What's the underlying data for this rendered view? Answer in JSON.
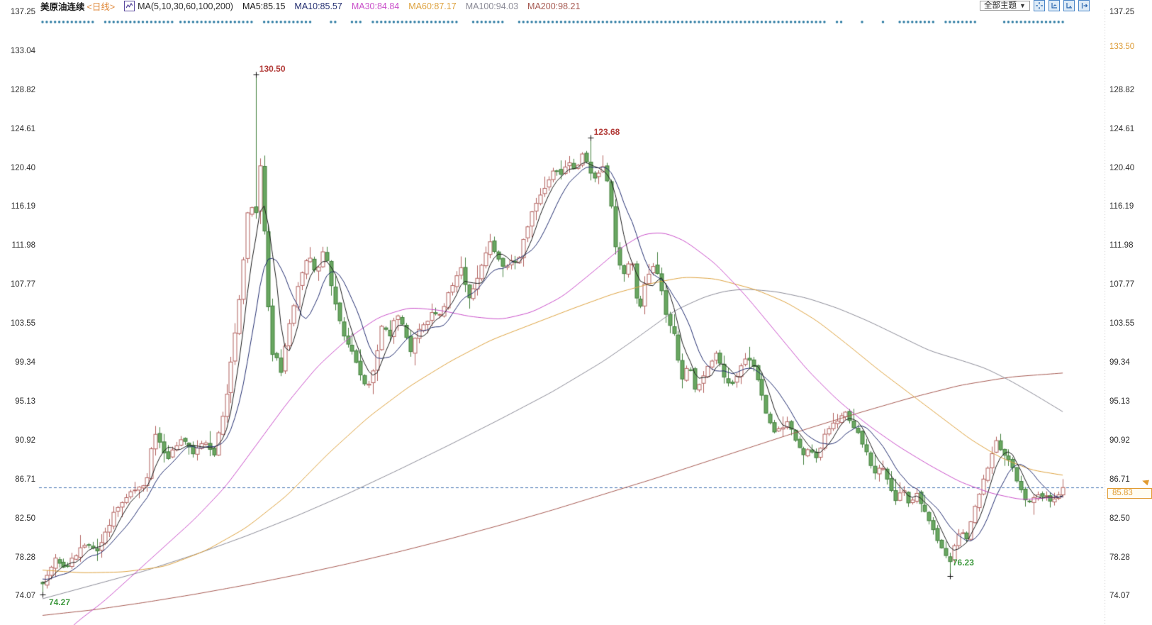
{
  "header": {
    "symbol": "美原油连续",
    "period": "<日线>",
    "indicator": "MA(5,10,30,60,100,200)",
    "ma_values": [
      {
        "name": "MA5",
        "label": "MA5:85.15",
        "value": 85.15,
        "color": "#1a1a1a"
      },
      {
        "name": "MA10",
        "label": "MA10:85.57",
        "value": 85.57,
        "color": "#232e70"
      },
      {
        "name": "MA30",
        "label": "MA30:84.84",
        "value": 84.84,
        "color": "#c94fc9"
      },
      {
        "name": "MA60",
        "label": "MA60:87.17",
        "value": 87.17,
        "color": "#dda23f"
      },
      {
        "name": "MA100",
        "label": "MA100:94.03",
        "value": 94.03,
        "color": "#8a8a96"
      },
      {
        "name": "MA200",
        "label": "MA200:98.21",
        "value": 98.21,
        "color": "#a65a52"
      }
    ]
  },
  "toolbar": {
    "themes_label": "全部主题",
    "themes_caret": "▼",
    "icons": [
      "crosshair-icon",
      "axis-chart-icon",
      "axis-play-icon",
      "panel-expand-icon"
    ]
  },
  "axis": {
    "left_ticks": [
      {
        "label": "137.25",
        "price": 137.25
      },
      {
        "label": "133.04",
        "price": 133.04
      },
      {
        "label": "128.82",
        "price": 128.82
      },
      {
        "label": "124.61",
        "price": 124.61
      },
      {
        "label": "120.40",
        "price": 120.4
      },
      {
        "label": "116.19",
        "price": 116.19
      },
      {
        "label": "111.98",
        "price": 111.98
      },
      {
        "label": "107.77",
        "price": 107.77
      },
      {
        "label": "103.55",
        "price": 103.55
      },
      {
        "label": "99.34",
        "price": 99.34
      },
      {
        "label": "95.13",
        "price": 95.13
      },
      {
        "label": "90.92",
        "price": 90.92
      },
      {
        "label": "86.71",
        "price": 86.71
      },
      {
        "label": "82.50",
        "price": 82.5
      },
      {
        "label": "78.28",
        "price": 78.28
      },
      {
        "label": "74.07",
        "price": 74.07
      }
    ],
    "right_ticks": [
      {
        "label": "137.25",
        "price": 137.25
      },
      {
        "label": "133.50",
        "price": 133.5,
        "highlight": true
      },
      {
        "label": "128.82",
        "price": 128.82
      },
      {
        "label": "124.61",
        "price": 124.61
      },
      {
        "label": "120.40",
        "price": 120.4
      },
      {
        "label": "116.19",
        "price": 116.19
      },
      {
        "label": "111.98",
        "price": 111.98
      },
      {
        "label": "107.77",
        "price": 107.77
      },
      {
        "label": "103.55",
        "price": 103.55
      },
      {
        "label": "99.34",
        "price": 99.34
      },
      {
        "label": "95.13",
        "price": 95.13
      },
      {
        "label": "90.92",
        "price": 90.92
      },
      {
        "label": "86.71",
        "price": 86.71
      },
      {
        "label": "82.50",
        "price": 82.5
      },
      {
        "label": "78.28",
        "price": 78.28
      },
      {
        "label": "74.07",
        "price": 74.07
      }
    ]
  },
  "price_line": {
    "label": "85.83",
    "value": 85.83,
    "color": "#e09a30",
    "dash_color": "#4a77b4"
  },
  "chart_data": {
    "type": "candlestick",
    "title": "美原油连续 <日线> — US Crude Oil Continuous, Daily",
    "ylim": [
      70.9,
      137.25
    ],
    "y_ticks": [
      74.07,
      78.28,
      82.5,
      86.71,
      90.92,
      95.13,
      99.34,
      103.55,
      107.77,
      111.98,
      116.19,
      120.4,
      124.61,
      128.82,
      133.04,
      137.25
    ],
    "grid": false,
    "candle_count": 245,
    "last_price": 85.83,
    "seed": 7,
    "noise": 0.45,
    "colors": {
      "up_border": "#b2615e",
      "up_fill": "#ffffff",
      "down_border": "#44803f",
      "down_fill": "#69a761",
      "event_dot": "#2878a0",
      "separator": "#c9c9c9"
    },
    "key_points": [
      {
        "label": "130.50",
        "price": 130.5,
        "t": 0.209,
        "kind": "high",
        "placement": "above"
      },
      {
        "label": "123.68",
        "price": 123.68,
        "t": 0.537,
        "kind": "high",
        "placement": "above"
      },
      {
        "label": "74.27",
        "price": 74.27,
        "t": 0.0,
        "kind": "low",
        "placement": "below"
      },
      {
        "label": "76.23",
        "price": 76.23,
        "t": 0.889,
        "kind": "low",
        "placement": "above-far"
      }
    ],
    "close_path": [
      [
        0.0,
        75.3
      ],
      [
        0.012,
        78.3
      ],
      [
        0.022,
        77.0
      ],
      [
        0.033,
        78.6
      ],
      [
        0.043,
        80.0
      ],
      [
        0.054,
        79.0
      ],
      [
        0.071,
        83.3
      ],
      [
        0.088,
        85.4
      ],
      [
        0.101,
        86.0
      ],
      [
        0.109,
        92.0
      ],
      [
        0.116,
        90.5
      ],
      [
        0.122,
        89.0
      ],
      [
        0.137,
        91.3
      ],
      [
        0.147,
        89.3
      ],
      [
        0.158,
        91.0
      ],
      [
        0.168,
        89.5
      ],
      [
        0.179,
        95.0
      ],
      [
        0.189,
        103.0
      ],
      [
        0.196,
        109.5
      ],
      [
        0.203,
        118.0
      ],
      [
        0.208,
        113.0
      ],
      [
        0.212,
        122.5
      ],
      [
        0.216,
        115.5
      ],
      [
        0.22,
        108.5
      ],
      [
        0.224,
        99.5
      ],
      [
        0.228,
        101.5
      ],
      [
        0.232,
        97.0
      ],
      [
        0.24,
        102.5
      ],
      [
        0.249,
        107.0
      ],
      [
        0.26,
        111.0
      ],
      [
        0.269,
        109.0
      ],
      [
        0.276,
        112.0
      ],
      [
        0.283,
        107.5
      ],
      [
        0.29,
        104.0
      ],
      [
        0.297,
        101.5
      ],
      [
        0.304,
        100.5
      ],
      [
        0.311,
        98.0
      ],
      [
        0.318,
        96.5
      ],
      [
        0.325,
        99.0
      ],
      [
        0.332,
        103.5
      ],
      [
        0.34,
        102.0
      ],
      [
        0.347,
        105.0
      ],
      [
        0.354,
        103.0
      ],
      [
        0.361,
        100.3
      ],
      [
        0.368,
        103.0
      ],
      [
        0.375,
        103.3
      ],
      [
        0.382,
        104.8
      ],
      [
        0.389,
        104.3
      ],
      [
        0.396,
        106.3
      ],
      [
        0.403,
        108.0
      ],
      [
        0.41,
        109.8
      ],
      [
        0.417,
        106.3
      ],
      [
        0.424,
        107.5
      ],
      [
        0.431,
        110.0
      ],
      [
        0.438,
        112.3
      ],
      [
        0.445,
        110.8
      ],
      [
        0.452,
        109.3
      ],
      [
        0.459,
        110.5
      ],
      [
        0.466,
        110.0
      ],
      [
        0.473,
        113.3
      ],
      [
        0.48,
        115.8
      ],
      [
        0.487,
        117.3
      ],
      [
        0.494,
        118.8
      ],
      [
        0.501,
        120.3
      ],
      [
        0.508,
        119.8
      ],
      [
        0.515,
        121.3
      ],
      [
        0.522,
        120.3
      ],
      [
        0.529,
        121.8
      ],
      [
        0.535,
        120.3
      ],
      [
        0.542,
        119.3
      ],
      [
        0.549,
        120.6
      ],
      [
        0.556,
        117.8
      ],
      [
        0.563,
        110.3
      ],
      [
        0.57,
        108.8
      ],
      [
        0.577,
        110.8
      ],
      [
        0.584,
        104.3
      ],
      [
        0.591,
        108.3
      ],
      [
        0.598,
        109.8
      ],
      [
        0.605,
        108.3
      ],
      [
        0.612,
        103.8
      ],
      [
        0.619,
        102.3
      ],
      [
        0.626,
        97.3
      ],
      [
        0.633,
        99.3
      ],
      [
        0.64,
        96.3
      ],
      [
        0.647,
        97.8
      ],
      [
        0.654,
        99.3
      ],
      [
        0.661,
        100.3
      ],
      [
        0.668,
        97.8
      ],
      [
        0.675,
        96.8
      ],
      [
        0.682,
        98.3
      ],
      [
        0.689,
        99.8
      ],
      [
        0.696,
        99.0
      ],
      [
        0.703,
        96.8
      ],
      [
        0.71,
        93.3
      ],
      [
        0.717,
        91.8
      ],
      [
        0.724,
        92.3
      ],
      [
        0.731,
        93.0
      ],
      [
        0.738,
        90.8
      ],
      [
        0.745,
        89.3
      ],
      [
        0.752,
        90.3
      ],
      [
        0.759,
        88.8
      ],
      [
        0.766,
        91.3
      ],
      [
        0.773,
        92.8
      ],
      [
        0.78,
        93.3
      ],
      [
        0.787,
        93.8
      ],
      [
        0.794,
        92.3
      ],
      [
        0.801,
        91.3
      ],
      [
        0.808,
        89.3
      ],
      [
        0.815,
        87.3
      ],
      [
        0.822,
        88.3
      ],
      [
        0.829,
        86.3
      ],
      [
        0.836,
        84.3
      ],
      [
        0.843,
        85.8
      ],
      [
        0.85,
        83.8
      ],
      [
        0.857,
        85.3
      ],
      [
        0.864,
        83.3
      ],
      [
        0.871,
        81.8
      ],
      [
        0.878,
        79.8
      ],
      [
        0.885,
        78.3
      ],
      [
        0.889,
        77.8
      ],
      [
        0.892,
        79.3
      ],
      [
        0.899,
        81.3
      ],
      [
        0.906,
        80.3
      ],
      [
        0.913,
        83.3
      ],
      [
        0.92,
        85.8
      ],
      [
        0.927,
        88.3
      ],
      [
        0.934,
        90.8
      ],
      [
        0.941,
        89.3
      ],
      [
        0.948,
        88.8
      ],
      [
        0.955,
        86.3
      ],
      [
        0.962,
        84.8
      ],
      [
        0.969,
        84.3
      ],
      [
        0.976,
        85.3
      ],
      [
        0.983,
        84.8
      ],
      [
        0.99,
        84.3
      ],
      [
        0.997,
        85.3
      ],
      [
        1.0,
        85.83
      ]
    ],
    "moving_averages": [
      {
        "name": "MA5",
        "period": 5,
        "color": "#1a1a1a",
        "last": 85.15,
        "computed": true
      },
      {
        "name": "MA10",
        "period": 10,
        "color": "#232e70",
        "last": 85.57,
        "computed": true
      },
      {
        "name": "MA30",
        "period": 30,
        "color": "#c94fc9",
        "last": 84.84,
        "path": [
          [
            0,
            67
          ],
          [
            0.03,
            71
          ],
          [
            0.06,
            73.5
          ],
          [
            0.09,
            76.5
          ],
          [
            0.12,
            79.5
          ],
          [
            0.15,
            82.5
          ],
          [
            0.18,
            86
          ],
          [
            0.21,
            90.5
          ],
          [
            0.24,
            95
          ],
          [
            0.27,
            99
          ],
          [
            0.3,
            102
          ],
          [
            0.33,
            104.3
          ],
          [
            0.36,
            105.3
          ],
          [
            0.39,
            105.0
          ],
          [
            0.42,
            104.3
          ],
          [
            0.45,
            104.0
          ],
          [
            0.48,
            104.8
          ],
          [
            0.51,
            106.5
          ],
          [
            0.54,
            109.2
          ],
          [
            0.57,
            112.0
          ],
          [
            0.59,
            113.3
          ],
          [
            0.61,
            113.4
          ],
          [
            0.63,
            112.5
          ],
          [
            0.66,
            110.0
          ],
          [
            0.69,
            106.5
          ],
          [
            0.72,
            102.5
          ],
          [
            0.75,
            98.5
          ],
          [
            0.78,
            95.2
          ],
          [
            0.81,
            92.5
          ],
          [
            0.84,
            90.2
          ],
          [
            0.87,
            88.2
          ],
          [
            0.9,
            86.4
          ],
          [
            0.93,
            85.2
          ],
          [
            0.96,
            84.5
          ],
          [
            1.0,
            84.84
          ]
        ]
      },
      {
        "name": "MA60",
        "period": 60,
        "color": "#dda23f",
        "last": 87.17,
        "path": [
          [
            0,
            76.9
          ],
          [
            0.04,
            76.6
          ],
          [
            0.08,
            76.7
          ],
          [
            0.12,
            77.3
          ],
          [
            0.16,
            79.0
          ],
          [
            0.2,
            81.5
          ],
          [
            0.24,
            85.0
          ],
          [
            0.28,
            89.5
          ],
          [
            0.32,
            93.5
          ],
          [
            0.36,
            96.8
          ],
          [
            0.4,
            99.5
          ],
          [
            0.44,
            101.8
          ],
          [
            0.48,
            103.5
          ],
          [
            0.52,
            105.2
          ],
          [
            0.56,
            106.8
          ],
          [
            0.6,
            108.0
          ],
          [
            0.63,
            108.6
          ],
          [
            0.66,
            108.4
          ],
          [
            0.7,
            107.2
          ],
          [
            0.73,
            105.8
          ],
          [
            0.76,
            103.8
          ],
          [
            0.79,
            101.2
          ],
          [
            0.82,
            98.5
          ],
          [
            0.85,
            96.0
          ],
          [
            0.88,
            93.5
          ],
          [
            0.91,
            91.0
          ],
          [
            0.94,
            89.0
          ],
          [
            0.97,
            87.7
          ],
          [
            1.0,
            87.17
          ]
        ]
      },
      {
        "name": "MA100",
        "period": 100,
        "color": "#8a8a96",
        "last": 94.03,
        "path": [
          [
            0,
            73.8
          ],
          [
            0.05,
            75.3
          ],
          [
            0.1,
            76.8
          ],
          [
            0.15,
            78.6
          ],
          [
            0.2,
            80.6
          ],
          [
            0.25,
            82.8
          ],
          [
            0.3,
            85.2
          ],
          [
            0.35,
            87.8
          ],
          [
            0.4,
            90.5
          ],
          [
            0.45,
            93.3
          ],
          [
            0.5,
            96.2
          ],
          [
            0.55,
            99.5
          ],
          [
            0.58,
            101.8
          ],
          [
            0.62,
            105.0
          ],
          [
            0.65,
            106.5
          ],
          [
            0.67,
            107.1
          ],
          [
            0.69,
            107.3
          ],
          [
            0.72,
            107.0
          ],
          [
            0.75,
            106.3
          ],
          [
            0.78,
            105.2
          ],
          [
            0.81,
            103.8
          ],
          [
            0.84,
            102.2
          ],
          [
            0.87,
            100.6
          ],
          [
            0.9,
            99.6
          ],
          [
            0.925,
            98.7
          ],
          [
            0.95,
            97.3
          ],
          [
            0.975,
            95.7
          ],
          [
            1.0,
            94.03
          ]
        ]
      },
      {
        "name": "MA200",
        "period": 200,
        "color": "#a65a52",
        "last": 98.21,
        "path": [
          [
            0,
            72.0
          ],
          [
            0.05,
            72.6
          ],
          [
            0.1,
            73.4
          ],
          [
            0.15,
            74.3
          ],
          [
            0.2,
            75.3
          ],
          [
            0.25,
            76.4
          ],
          [
            0.3,
            77.6
          ],
          [
            0.35,
            78.9
          ],
          [
            0.4,
            80.3
          ],
          [
            0.45,
            81.8
          ],
          [
            0.5,
            83.4
          ],
          [
            0.55,
            85.1
          ],
          [
            0.6,
            86.8
          ],
          [
            0.65,
            88.6
          ],
          [
            0.7,
            90.4
          ],
          [
            0.75,
            92.2
          ],
          [
            0.8,
            93.9
          ],
          [
            0.85,
            95.5
          ],
          [
            0.9,
            96.9
          ],
          [
            0.95,
            97.8
          ],
          [
            1.0,
            98.21
          ]
        ]
      }
    ],
    "event_dots": {
      "color": "#2878a0",
      "row_price": 136.1,
      "stay_prob": 0.93,
      "resume_prob": 0.3
    }
  }
}
